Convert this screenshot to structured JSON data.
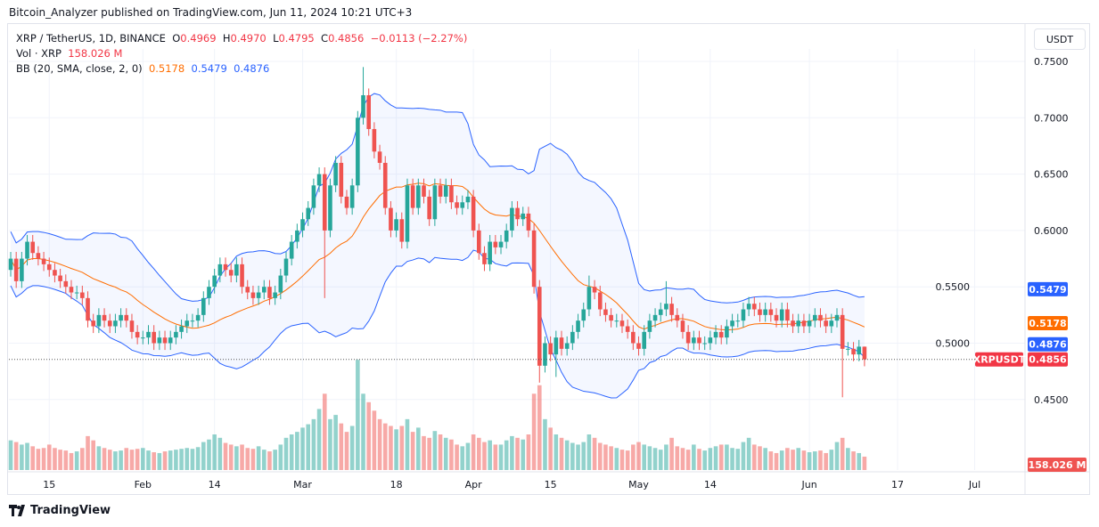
{
  "header": {
    "published": "Bitcoin_Analyzer published on TradingView.com, Jun 11, 2024 10:21 UTC+3"
  },
  "legend": {
    "symbol": "XRP / TetherUS, 1D, BINANCE",
    "o_label": "O",
    "o": "0.4969",
    "h_label": "H",
    "h": "0.4970",
    "l_label": "L",
    "l": "0.4795",
    "c_label": "C",
    "c": "0.4856",
    "change": "−0.0113 (−2.27%)",
    "vol_label": "Vol · XRP",
    "vol": "158.026 M",
    "bb_label": "BB (20, SMA, close, 2, 0)",
    "bb_basis": "0.5178",
    "bb_upper": "0.5479",
    "bb_lower": "0.4876"
  },
  "axis": {
    "currency": "USDT",
    "symbol_tag": "XRPUSDT",
    "last_price": "0.4856",
    "vol_tag": "158.026 M",
    "upper_tag": "0.5479",
    "basis_tag": "0.5178",
    "lower_tag": "0.4876"
  },
  "footer": {
    "brand": "TradingView"
  },
  "colors": {
    "up": "#26a69a",
    "down": "#ef5350",
    "bb_band": "#2962ff",
    "bb_basis": "#ff6d00",
    "last": "#f23645"
  },
  "chart_data": {
    "type": "candlestick",
    "start_date": "2024-01-08",
    "y_ticks": [
      0.45,
      0.5,
      0.55,
      0.6,
      0.65,
      0.7,
      0.75
    ],
    "y_tick_labels": [
      "0.4500",
      "0.5000",
      "0.5500",
      "0.6000",
      "0.6500",
      "0.7000",
      "0.7500"
    ],
    "x_ticks": [
      {
        "date": "2024-01-15",
        "label": "15"
      },
      {
        "date": "2024-02-01",
        "label": "Feb"
      },
      {
        "date": "2024-02-14",
        "label": "14"
      },
      {
        "date": "2024-03-01",
        "label": "Mar"
      },
      {
        "date": "2024-03-18",
        "label": "18"
      },
      {
        "date": "2024-04-01",
        "label": "Apr"
      },
      {
        "date": "2024-04-15",
        "label": "15"
      },
      {
        "date": "2024-05-01",
        "label": "May"
      },
      {
        "date": "2024-05-14",
        "label": "14"
      },
      {
        "date": "2024-06-01",
        "label": "Jun"
      },
      {
        "date": "2024-06-17",
        "label": "17"
      },
      {
        "date": "2024-07-01",
        "label": "Jul"
      }
    ],
    "close": [
      0.575,
      0.555,
      0.575,
      0.59,
      0.58,
      0.575,
      0.57,
      0.565,
      0.56,
      0.555,
      0.55,
      0.545,
      0.545,
      0.54,
      0.52,
      0.515,
      0.525,
      0.52,
      0.515,
      0.52,
      0.525,
      0.52,
      0.51,
      0.505,
      0.505,
      0.51,
      0.5,
      0.505,
      0.5,
      0.505,
      0.51,
      0.515,
      0.52,
      0.52,
      0.525,
      0.54,
      0.55,
      0.56,
      0.57,
      0.565,
      0.56,
      0.57,
      0.55,
      0.545,
      0.54,
      0.545,
      0.55,
      0.54,
      0.545,
      0.56,
      0.575,
      0.59,
      0.6,
      0.61,
      0.62,
      0.64,
      0.65,
      0.6,
      0.64,
      0.66,
      0.63,
      0.62,
      0.64,
      0.7,
      0.72,
      0.69,
      0.67,
      0.66,
      0.62,
      0.6,
      0.61,
      0.59,
      0.64,
      0.62,
      0.64,
      0.63,
      0.61,
      0.64,
      0.63,
      0.64,
      0.625,
      0.62,
      0.625,
      0.63,
      0.6,
      0.58,
      0.57,
      0.59,
      0.585,
      0.59,
      0.6,
      0.62,
      0.61,
      0.615,
      0.6,
      0.55,
      0.48,
      0.5,
      0.49,
      0.505,
      0.495,
      0.5,
      0.51,
      0.52,
      0.53,
      0.55,
      0.545,
      0.53,
      0.525,
      0.52,
      0.52,
      0.515,
      0.51,
      0.5,
      0.495,
      0.51,
      0.52,
      0.525,
      0.53,
      0.535,
      0.525,
      0.52,
      0.51,
      0.5,
      0.505,
      0.5,
      0.5,
      0.505,
      0.51,
      0.505,
      0.515,
      0.52,
      0.52,
      0.53,
      0.535,
      0.53,
      0.525,
      0.53,
      0.525,
      0.52,
      0.53,
      0.52,
      0.515,
      0.52,
      0.515,
      0.52,
      0.525,
      0.52,
      0.515,
      0.52,
      0.525,
      0.495,
      0.495,
      0.49,
      0.4969,
      0.4856
    ],
    "open_first": 0.565,
    "last_candle": {
      "open": 0.4969,
      "high": 0.497,
      "low": 0.4795,
      "close": 0.4856
    },
    "wick_extremes": [
      {
        "date": "2024-03-05",
        "low": 0.54
      },
      {
        "date": "2024-03-12",
        "high": 0.745
      },
      {
        "date": "2024-04-13",
        "low": 0.465
      },
      {
        "date": "2024-04-16",
        "low": 0.47
      },
      {
        "date": "2024-06-07",
        "low": 0.452
      },
      {
        "date": "2024-05-06",
        "high": 0.555
      },
      {
        "date": "2024-04-22",
        "high": 0.56
      }
    ],
    "volume_millions": [
      350,
      330,
      300,
      320,
      280,
      250,
      260,
      300,
      260,
      240,
      230,
      200,
      220,
      260,
      400,
      350,
      280,
      260,
      240,
      220,
      230,
      260,
      240,
      250,
      260,
      230,
      210,
      200,
      220,
      230,
      240,
      250,
      260,
      250,
      270,
      330,
      360,
      420,
      380,
      320,
      300,
      280,
      300,
      260,
      250,
      280,
      240,
      220,
      240,
      300,
      380,
      420,
      450,
      500,
      540,
      600,
      720,
      900,
      600,
      650,
      550,
      450,
      520,
      1300,
      900,
      800,
      700,
      600,
      550,
      520,
      480,
      520,
      600,
      450,
      500,
      400,
      380,
      460,
      420,
      380,
      360,
      300,
      280,
      320,
      420,
      380,
      330,
      350,
      300,
      300,
      350,
      400,
      380,
      360,
      420,
      900,
      1000,
      600,
      500,
      420,
      380,
      350,
      320,
      300,
      330,
      420,
      380,
      320,
      300,
      280,
      260,
      240,
      230,
      300,
      330,
      300,
      280,
      260,
      240,
      300,
      380,
      280,
      260,
      240,
      300,
      250,
      230,
      260,
      280,
      300,
      300,
      260,
      250,
      330,
      380,
      300,
      280,
      260,
      220,
      200,
      230,
      260,
      240,
      260,
      230,
      210,
      220,
      230,
      200,
      240,
      330,
      380,
      260,
      220,
      200,
      158
    ],
    "bollinger": {
      "period": 20,
      "stddev": 2,
      "upper": 0.5479,
      "basis": 0.5178,
      "lower": 0.4876
    }
  }
}
